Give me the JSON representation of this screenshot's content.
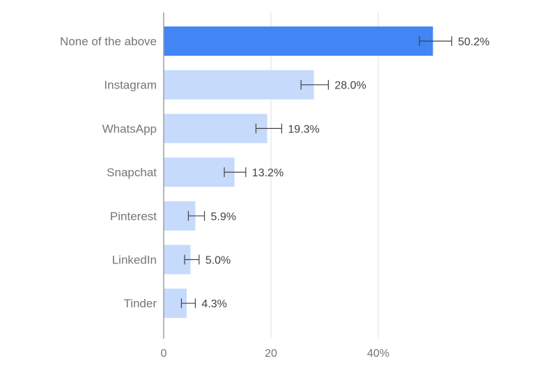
{
  "chart_data": {
    "type": "bar",
    "orientation": "horizontal",
    "categories": [
      "None of the above",
      "Instagram",
      "WhatsApp",
      "Snapchat",
      "Pinterest",
      "LinkedIn",
      "Tinder"
    ],
    "values": [
      50.2,
      28.0,
      19.3,
      13.2,
      5.9,
      5.0,
      4.3
    ],
    "value_labels": [
      "50.2%",
      "28.0%",
      "19.3%",
      "13.2%",
      "5.9%",
      "5.0%",
      "4.3%"
    ],
    "error_bars": [
      {
        "low": 47.7,
        "high": 53.7
      },
      {
        "low": 25.6,
        "high": 30.7
      },
      {
        "low": 17.2,
        "high": 22.0
      },
      {
        "low": 11.3,
        "high": 15.3
      },
      {
        "low": 4.6,
        "high": 7.6
      },
      {
        "low": 3.9,
        "high": 6.6
      },
      {
        "low": 3.3,
        "high": 5.9
      }
    ],
    "xlim": [
      0,
      50
    ],
    "x_ticks": [
      0,
      20,
      40
    ],
    "x_tick_labels": [
      "0",
      "20",
      "40%"
    ],
    "grid": true,
    "highlight_index": 0,
    "colors": {
      "highlight": "#4285f4",
      "bar": "#c6dafc",
      "grid": "#e0e0e0",
      "axis": "#9e9e9e"
    }
  }
}
